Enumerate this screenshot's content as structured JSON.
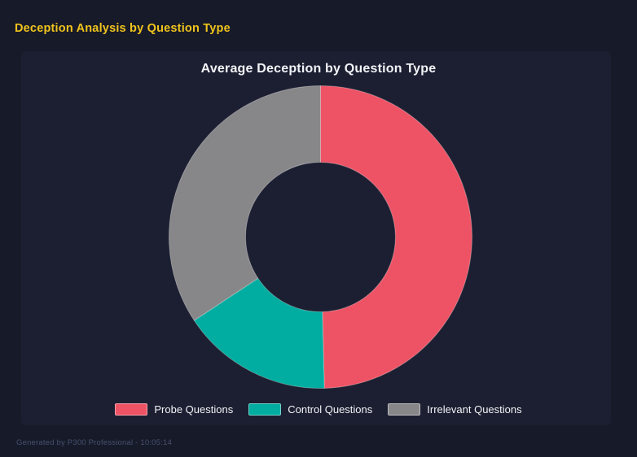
{
  "page": {
    "background": "#171a28",
    "title": "Deception Analysis by Question Type",
    "title_color": "#f0c41d",
    "footer": "Generated by P300 Professional - 10:05:14"
  },
  "panel": {
    "background": "#1c1f31"
  },
  "chart_data": {
    "type": "pie",
    "subtype": "doughnut",
    "title": "Average Deception by Question Type",
    "categories": [
      "Probe Questions",
      "Control Questions",
      "Irrelevant Questions"
    ],
    "values_percent": [
      49.6,
      16.1,
      34.3
    ],
    "colors": [
      "#ee5365",
      "#00ada0",
      "#87878a"
    ],
    "start_angle_deg": 0,
    "direction": "clockwise",
    "inner_radius_ratio": 0.49,
    "segment_border_color": "rgba(255,255,255,0.3)",
    "legend_position": "bottom",
    "grid": false
  }
}
